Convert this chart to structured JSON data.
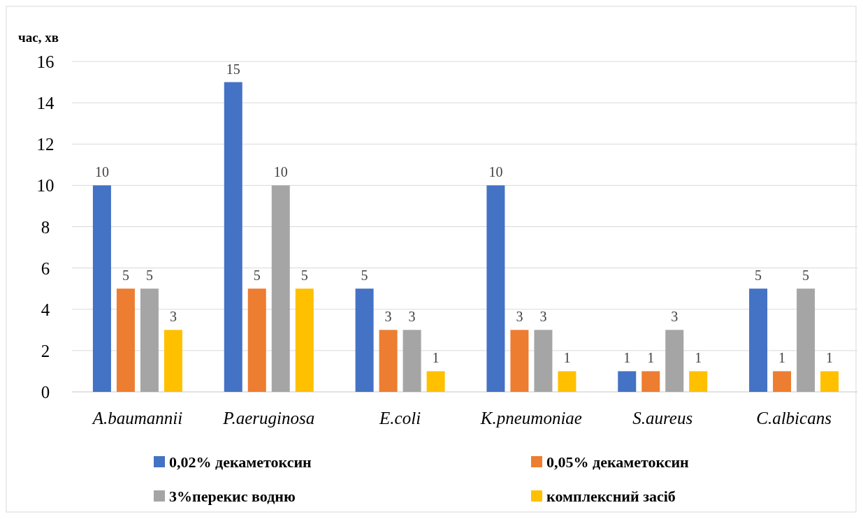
{
  "chart_data": {
    "type": "bar",
    "ylabel": "час, хв",
    "categories": [
      "A.baumannii",
      "P.aeruginosa",
      "E.coli",
      "K.pneumoniae",
      "S.aureus",
      "C.albicans"
    ],
    "series": [
      {
        "name": "0,02% декаметоксин",
        "color": "#4472c4",
        "values": [
          10,
          15,
          5,
          10,
          1,
          5
        ]
      },
      {
        "name": "0,05% декаметоксин",
        "color": "#ed7d31",
        "values": [
          5,
          5,
          3,
          3,
          1,
          1
        ]
      },
      {
        "name": "3%перекис водню",
        "color": "#a5a5a5",
        "values": [
          5,
          10,
          3,
          3,
          3,
          5
        ]
      },
      {
        "name": "комплексний засіб",
        "color": "#ffc000",
        "values": [
          3,
          5,
          1,
          1,
          1,
          1
        ]
      }
    ],
    "ylim": [
      0,
      16
    ],
    "yticks": [
      0,
      2,
      4,
      6,
      8,
      10,
      12,
      14,
      16
    ],
    "grid": "y",
    "data_labels": true,
    "legend": "bottom"
  }
}
